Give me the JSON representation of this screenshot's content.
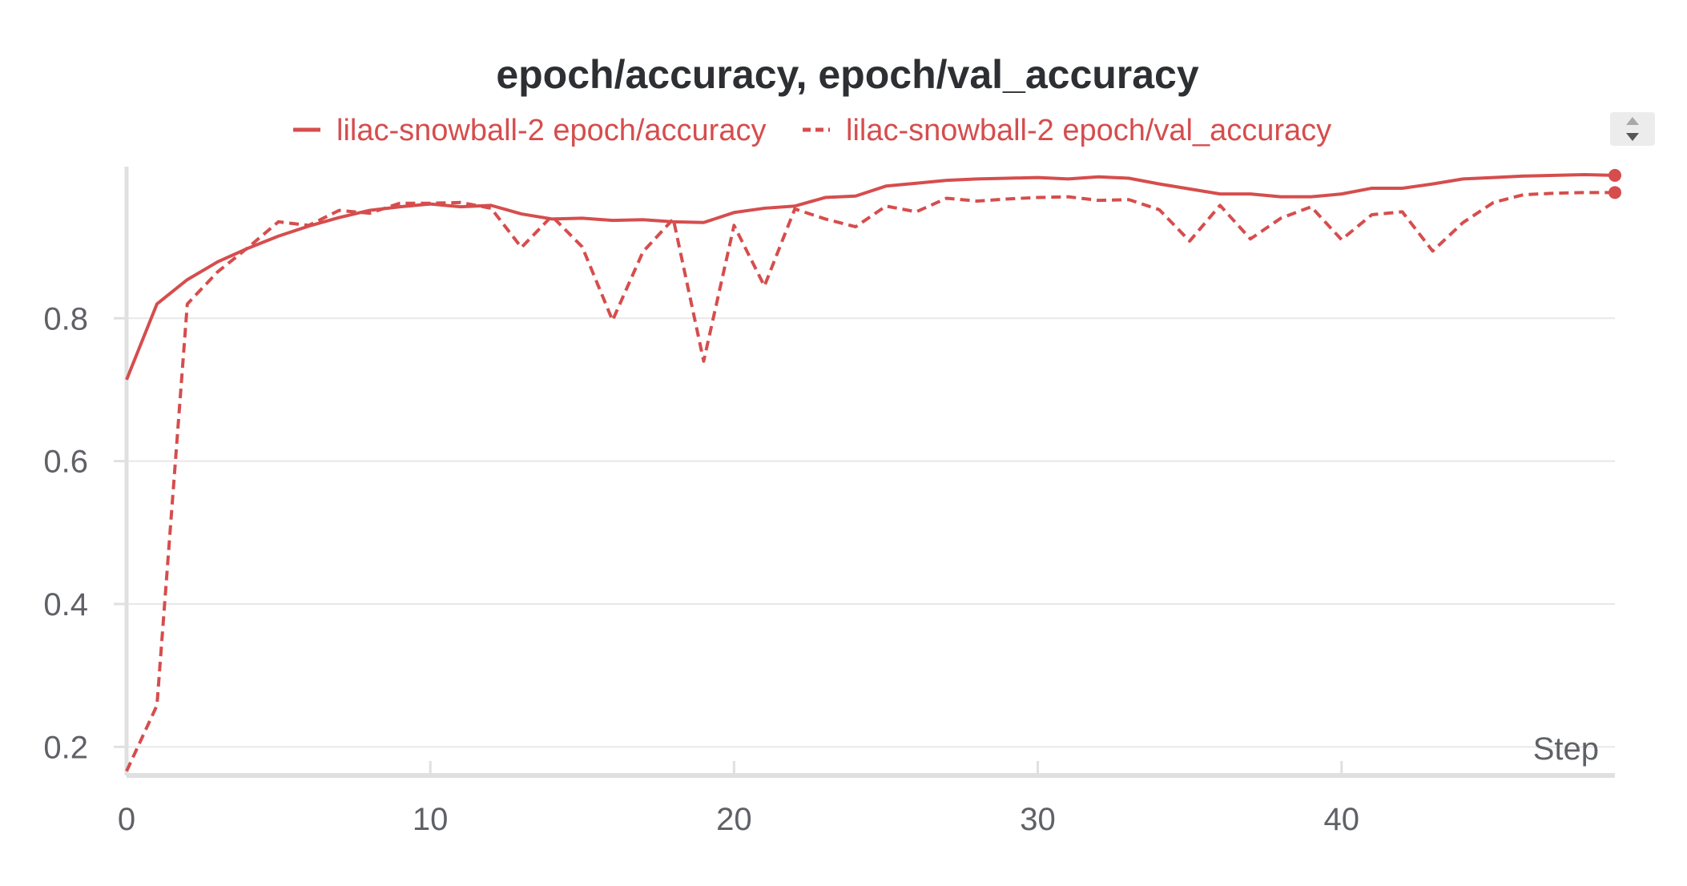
{
  "colors": {
    "series": "#d64d4d",
    "grid": "#e8e8e8",
    "axis": "#e0e0e0",
    "text": "#5f6166",
    "title": "#2d2f33"
  },
  "icons": {
    "legend_scroll": "up-down-arrows-icon"
  },
  "chart_data": {
    "type": "line",
    "title": "epoch/accuracy, epoch/val_accuracy",
    "xlabel": "Step",
    "ylabel": "",
    "xlim": [
      0,
      49
    ],
    "ylim": [
      0.16,
      1.01
    ],
    "xticks": [
      0,
      10,
      20,
      30,
      40
    ],
    "yticks": [
      0.2,
      0.4,
      0.6,
      0.8
    ],
    "xtick_labels": [
      "0",
      "10",
      "20",
      "30",
      "40"
    ],
    "ytick_labels": [
      "0.2",
      "0.4",
      "0.6",
      "0.8"
    ],
    "grid": "horizontal",
    "legend_position": "top",
    "x": [
      0,
      1,
      2,
      3,
      4,
      5,
      6,
      7,
      8,
      9,
      10,
      11,
      12,
      13,
      14,
      15,
      16,
      17,
      18,
      19,
      20,
      21,
      22,
      23,
      24,
      25,
      26,
      27,
      28,
      29,
      30,
      31,
      32,
      33,
      34,
      35,
      36,
      37,
      38,
      39,
      40,
      41,
      42,
      43,
      44,
      45,
      46,
      47,
      48,
      49
    ],
    "series": [
      {
        "name": "lilac-snowball-2 epoch/accuracy",
        "style": "solid",
        "values": [
          0.714,
          0.82,
          0.854,
          0.879,
          0.898,
          0.915,
          0.929,
          0.941,
          0.951,
          0.956,
          0.96,
          0.956,
          0.958,
          0.946,
          0.939,
          0.94,
          0.937,
          0.938,
          0.935,
          0.934,
          0.948,
          0.954,
          0.957,
          0.969,
          0.971,
          0.985,
          0.989,
          0.993,
          0.995,
          0.996,
          0.997,
          0.995,
          0.998,
          0.996,
          0.988,
          0.981,
          0.974,
          0.974,
          0.97,
          0.97,
          0.974,
          0.982,
          0.982,
          0.988,
          0.995,
          0.997,
          0.999,
          1.0,
          1.001,
          1.0
        ]
      },
      {
        "name": "lilac-snowball-2 epoch/val_accuracy",
        "style": "dashed",
        "values": [
          0.166,
          0.258,
          0.82,
          0.865,
          0.899,
          0.935,
          0.93,
          0.951,
          0.947,
          0.961,
          0.961,
          0.962,
          0.954,
          0.899,
          0.943,
          0.9,
          0.797,
          0.893,
          0.939,
          0.74,
          0.93,
          0.845,
          0.953,
          0.939,
          0.928,
          0.957,
          0.949,
          0.968,
          0.964,
          0.967,
          0.969,
          0.97,
          0.965,
          0.966,
          0.952,
          0.908,
          0.958,
          0.911,
          0.94,
          0.956,
          0.91,
          0.945,
          0.949,
          0.894,
          0.934,
          0.962,
          0.973,
          0.975,
          0.976,
          0.976
        ]
      }
    ]
  }
}
